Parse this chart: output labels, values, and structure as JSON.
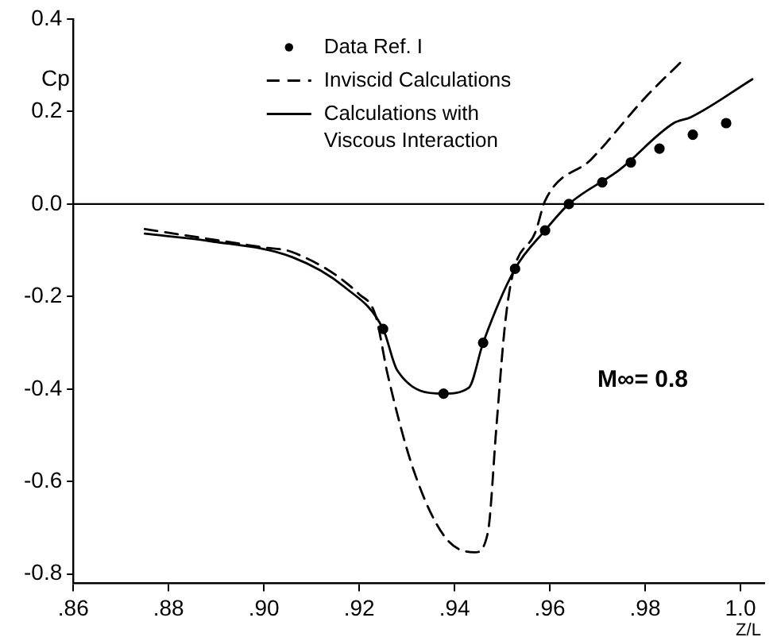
{
  "chart_data": {
    "type": "line",
    "xlabel": "Z/L",
    "ylabel": "Cp",
    "annotations": [
      "M∞= 0.8"
    ],
    "xlim": [
      0.86,
      1.005
    ],
    "ylim": [
      -0.82,
      0.4
    ],
    "xticks": [
      {
        "value": 0.86,
        "label": ".86"
      },
      {
        "value": 0.88,
        "label": ".88"
      },
      {
        "value": 0.9,
        "label": ".90"
      },
      {
        "value": 0.92,
        "label": ".92"
      },
      {
        "value": 0.94,
        "label": ".94"
      },
      {
        "value": 0.96,
        "label": ".96"
      },
      {
        "value": 0.98,
        "label": ".98"
      },
      {
        "value": 1.0,
        "label": "1.0"
      }
    ],
    "yticks": [
      {
        "value": -0.8,
        "label": "-0.8"
      },
      {
        "value": -0.6,
        "label": "-0.6"
      },
      {
        "value": -0.4,
        "label": "-0.4"
      },
      {
        "value": -0.2,
        "label": "-0.2"
      },
      {
        "value": 0,
        "label": "0.0"
      },
      {
        "value": 0.2,
        "label": "0.2"
      },
      {
        "value": 0.4,
        "label": "0.4"
      }
    ],
    "grid": false,
    "legend": "top",
    "ref_lines": [
      {
        "axis": "y",
        "value": 0,
        "color": "#000000"
      }
    ],
    "series": [
      {
        "name": "Data Ref. I",
        "type": "scatter",
        "marker": "circle",
        "color": "#000000",
        "x": [
          0.925,
          0.9377,
          0.946,
          0.9527,
          0.959,
          0.964,
          0.971,
          0.977,
          0.983,
          0.99,
          0.997
        ],
        "values": [
          -0.27,
          -0.41,
          -0.3,
          -0.14,
          -0.057,
          0,
          0.047,
          0.09,
          0.12,
          0.15,
          0.175
        ]
      },
      {
        "name": "Inviscid Calculations",
        "line_style": "dashed",
        "marker": "none",
        "color": "#000000",
        "x": [
          0.875,
          0.9,
          0.906,
          0.92,
          0.9234,
          0.926,
          0.9314,
          0.938,
          0.9443,
          0.947,
          0.9488,
          0.9506,
          0.9523,
          0.957,
          0.959,
          0.9687,
          0.98,
          0.9878
        ],
        "values": [
          -0.054,
          -0.094,
          -0.104,
          -0.195,
          -0.24,
          -0.37,
          -0.575,
          -0.72,
          -0.753,
          -0.71,
          -0.48,
          -0.26,
          -0.148,
          -0.06,
          0.007,
          0.097,
          0.23,
          0.31
        ]
      },
      {
        "name": "Calculations with Viscous Interaction",
        "line_style": "solid",
        "marker": "none",
        "color": "#000000",
        "x": [
          0.875,
          0.8886,
          0.906,
          0.917,
          0.925,
          0.928,
          0.9377,
          0.943,
          0.946,
          0.9527,
          0.959,
          0.964,
          0.9746,
          0.986,
          0.9896,
          1.0025
        ],
        "values": [
          -0.064,
          -0.08,
          -0.115,
          -0.18,
          -0.27,
          -0.36,
          -0.41,
          -0.397,
          -0.3,
          -0.14,
          -0.057,
          0,
          0.074,
          0.175,
          0.188,
          0.27
        ]
      }
    ]
  }
}
